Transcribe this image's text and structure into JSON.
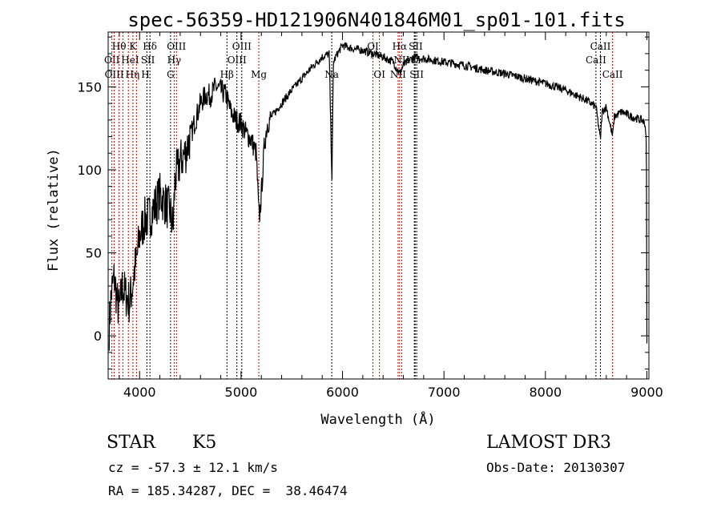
{
  "chart_data": {
    "type": "line",
    "title": "spec-56359-HD121906N401846M01_sp01-101.fits",
    "xlabel": "Wavelength (Å)",
    "ylabel": "Flux (relative)",
    "xlim": [
      3690,
      9020
    ],
    "ylim": [
      -26,
      183
    ],
    "xticks": [
      4000,
      5000,
      6000,
      7000,
      8000,
      9000
    ],
    "yticks": [
      0,
      50,
      100,
      150
    ],
    "grid": false,
    "series": [
      {
        "name": "spectrum",
        "x": [
          3700,
          3720,
          3750,
          3780,
          3800,
          3830,
          3860,
          3900,
          3930,
          3950,
          3970,
          4000,
          4050,
          4100,
          4150,
          4200,
          4250,
          4300,
          4330,
          4350,
          4400,
          4450,
          4500,
          4550,
          4600,
          4650,
          4700,
          4750,
          4800,
          4850,
          4900,
          4950,
          5000,
          5050,
          5100,
          5150,
          5170,
          5180,
          5200,
          5230,
          5260,
          5300,
          5400,
          5500,
          5600,
          5700,
          5800,
          5870,
          5889,
          5896,
          5910,
          5950,
          6000,
          6100,
          6200,
          6300,
          6400,
          6500,
          6563,
          6600,
          6700,
          6800,
          6900,
          7000,
          7200,
          7400,
          7600,
          7800,
          8000,
          8200,
          8400,
          8498,
          8520,
          8542,
          8560,
          8600,
          8662,
          8680,
          8750,
          8850,
          8950,
          8980,
          8995,
          9000
        ],
        "y": [
          5,
          25,
          35,
          20,
          15,
          30,
          25,
          20,
          30,
          40,
          45,
          60,
          70,
          72,
          78,
          85,
          80,
          75,
          65,
          95,
          105,
          110,
          120,
          130,
          140,
          145,
          145,
          150,
          148,
          145,
          135,
          130,
          128,
          122,
          118,
          110,
          80,
          70,
          85,
          115,
          128,
          132,
          140,
          148,
          155,
          162,
          168,
          170,
          110,
          95,
          165,
          170,
          175,
          173,
          172,
          170,
          168,
          165,
          158,
          163,
          168,
          167,
          166,
          165,
          163,
          160,
          158,
          155,
          152,
          148,
          142,
          138,
          128,
          118,
          135,
          138,
          120,
          132,
          135,
          132,
          130,
          128,
          120,
          -5
        ]
      }
    ],
    "lines": [
      {
        "label": "OII",
        "wave": 3727,
        "row": 2,
        "color": "#cc0000"
      },
      {
        "label": "OIII",
        "wave": 3750,
        "row": 3,
        "color": "#cc0000"
      },
      {
        "label": "Hθ",
        "wave": 3798,
        "row": 1,
        "color": "#cc0000"
      },
      {
        "label": "Hη",
        "wave": 3835,
        "row": 3,
        "color": "#cc0000"
      },
      {
        "label": "HeI",
        "wave": 3889,
        "row": 2,
        "color": "#cc0000"
      },
      {
        "label": "K",
        "wave": 3934,
        "row": 1,
        "color": "#cc0000"
      },
      {
        "label": "H",
        "wave": 3969,
        "row": 3,
        "color": "#cc0000"
      },
      {
        "label": "SII",
        "wave": 4072,
        "row": 2,
        "color": "#000000"
      },
      {
        "label": "Hδ",
        "wave": 4102,
        "row": 1,
        "color": "#000000"
      },
      {
        "label": "G",
        "wave": 4305,
        "row": 3,
        "color": "#000000"
      },
      {
        "label": "Hγ",
        "wave": 4341,
        "row": 2,
        "color": "#cc0000"
      },
      {
        "label": "OIII",
        "wave": 4363,
        "row": 1,
        "color": "#cc0000"
      },
      {
        "label": "Hβ",
        "wave": 4861,
        "row": 3,
        "color": "#000000"
      },
      {
        "label": "OIII",
        "wave": 4959,
        "row": 2,
        "color": "#000000"
      },
      {
        "label": "OIII",
        "wave": 5007,
        "row": 1,
        "color": "#000000"
      },
      {
        "label": "Mg",
        "wave": 5175,
        "row": 3,
        "color": "#cc0000"
      },
      {
        "label": "Na",
        "wave": 5894,
        "row": 3,
        "color": "#000000"
      },
      {
        "label": "OI",
        "wave": 6300,
        "row": 1,
        "color": "#cc0000"
      },
      {
        "label": "OI",
        "wave": 6364,
        "row": 3,
        "color": "#cc0000"
      },
      {
        "label": "NII",
        "wave": 6548,
        "row": 3,
        "color": "#cc0000"
      },
      {
        "label": "Hα",
        "wave": 6563,
        "row": 1,
        "color": "#cc0000"
      },
      {
        "label": "NII",
        "wave": 6583,
        "row": 2,
        "color": "#cc0000"
      },
      {
        "label": "Li",
        "wave": 6708,
        "row": 2,
        "color": "#000000"
      },
      {
        "label": "SII",
        "wave": 6716,
        "row": 1,
        "color": "#000000"
      },
      {
        "label": "SII",
        "wave": 6731,
        "row": 3,
        "color": "#000000"
      },
      {
        "label": "CaII",
        "wave": 8498,
        "row": 2,
        "color": "#000000"
      },
      {
        "label": "CaII",
        "wave": 8542,
        "row": 1,
        "color": "#000000"
      },
      {
        "label": "CaII",
        "wave": 8662,
        "row": 3,
        "color": "#cc0000"
      }
    ]
  },
  "info": {
    "class_label": "STAR",
    "subclass": "K5",
    "cz": "cz = -57.3 ± 12.1 km/s",
    "coords": "RA = 185.34287, DEC =  38.46474",
    "survey": "LAMOST DR3",
    "obs_date": "Obs-Date: 20130307"
  }
}
